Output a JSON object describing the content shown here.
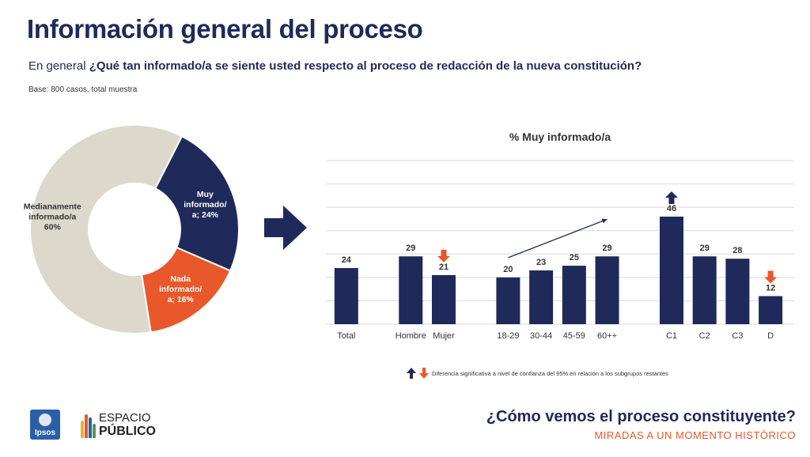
{
  "header": {
    "title": "Información general del proceso",
    "question_prefix": "En general ",
    "question_bold": "¿Qué tan informado/a se siente usted respecto al proceso de redacción de la nueva constitución?",
    "base": "Base: 800 casos, total muestra"
  },
  "legend": {
    "text": "Diferencia significativa a nivel de confianza del 95% en relación a los subgrupos restantes"
  },
  "footer": {
    "ipsos_label": "Ipsos",
    "ep_line1": "ESPACIO",
    "ep_line2": "PÚBLICO",
    "title": "¿Cómo vemos el proceso constituyente?",
    "subtitle": "MIRADAS A UN MOMENTO HISTÓRICO"
  },
  "colors": {
    "navy": "#1f2a5a",
    "orange": "#e8582a",
    "beige": "#dcd8cc"
  },
  "chart_data": [
    {
      "type": "pie",
      "donut": true,
      "slices": [
        {
          "label": [
            "Muy",
            "informado/",
            "a; 24%"
          ],
          "value": 24,
          "color": "#1f2a5a"
        },
        {
          "label": [
            "Nada",
            "informado/",
            "a; 16%"
          ],
          "value": 16,
          "color": "#e8582a"
        },
        {
          "label": [
            "Medianamente",
            "informado/a",
            "60%"
          ],
          "value": 60,
          "color": "#dcd8cc"
        }
      ]
    },
    {
      "type": "bar",
      "title": "% Muy informado/a",
      "categories": [
        "Total",
        "Hombre",
        "Mujer",
        "18-29",
        "30-44",
        "45-59",
        "60++",
        "C1",
        "C2",
        "C3",
        "D"
      ],
      "groups": [
        [
          0
        ],
        [
          1,
          2
        ],
        [
          3,
          4,
          5,
          6
        ],
        [
          7,
          8,
          9,
          10
        ]
      ],
      "values": [
        24,
        29,
        21,
        20,
        23,
        25,
        29,
        46,
        29,
        28,
        12
      ],
      "significance": {
        "Mujer": "down",
        "C1": "up",
        "D": "down"
      },
      "trend_arrow": {
        "from": "18-29",
        "to": "60++"
      },
      "ylim": [
        0,
        70
      ],
      "gridlines": [
        0,
        10,
        20,
        30,
        40,
        50,
        60,
        70
      ],
      "grid": true
    }
  ]
}
